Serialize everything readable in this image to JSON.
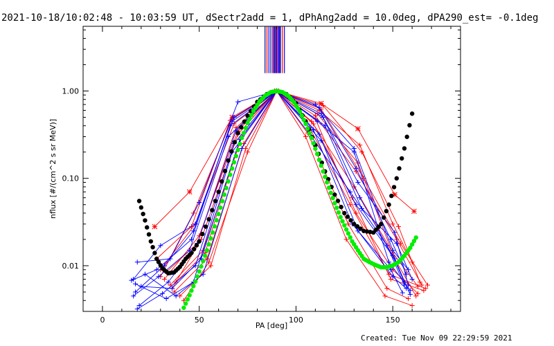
{
  "title": "2021-10-18/10:02:48 - 10:03:59 UT, dSectr2add = 1, dPhAng2add = 10.0deg, dPA290_est= -0.1deg",
  "footer": "Created: Tue Nov 09 22:29:59 2021",
  "colors": {
    "red": "#ff0000",
    "blue": "#0000ff",
    "green": "#00ee00",
    "black": "#000000",
    "vline": "#000088"
  },
  "chart_data": {
    "type": "line",
    "xlabel": "PA [deg]",
    "ylabel": "nflux [#/(cm^2 s sr MeV)]",
    "xlim": [
      -10,
      185
    ],
    "ylim": [
      0.003,
      5.5
    ],
    "yscale": "log",
    "xticks": [
      0,
      50,
      100,
      150
    ],
    "xticklabels": [
      "0",
      "50",
      "100",
      "150"
    ],
    "yticks": [
      0.01,
      0.1,
      1.0
    ],
    "yticklabels": [
      "0.01",
      "0.10",
      "1.00"
    ],
    "vertical_lines": [
      84,
      85,
      86,
      87,
      88,
      88.5,
      89,
      89.5,
      90,
      90.5,
      91,
      91.5,
      92,
      93,
      94
    ],
    "fit_black": {
      "name": "",
      "x": [
        19,
        22,
        25,
        28,
        31,
        34,
        37,
        40,
        43,
        46,
        50,
        55,
        60,
        65,
        70,
        75,
        80,
        85,
        90,
        95,
        100,
        105,
        110,
        115,
        120,
        125,
        130,
        135,
        140,
        144,
        148,
        152,
        156,
        160
      ],
      "y": [
        0.055,
        0.033,
        0.019,
        0.012,
        0.0093,
        0.0082,
        0.0084,
        0.0097,
        0.012,
        0.014,
        0.019,
        0.034,
        0.07,
        0.16,
        0.33,
        0.52,
        0.75,
        0.92,
        1.0,
        0.92,
        0.72,
        0.45,
        0.24,
        0.12,
        0.065,
        0.04,
        0.03,
        0.025,
        0.024,
        0.03,
        0.05,
        0.1,
        0.22,
        0.55
      ]
    },
    "fit_green": {
      "name": "",
      "x": [
        42,
        45,
        48,
        51,
        54,
        57,
        60,
        63,
        66,
        69,
        72,
        75,
        78,
        81,
        84,
        87,
        90,
        93,
        96,
        99,
        102,
        105,
        108,
        111,
        114,
        117,
        120,
        123,
        126,
        129,
        132,
        135,
        138,
        141,
        144,
        147,
        150,
        153,
        156,
        159,
        162
      ],
      "y": [
        0.0033,
        0.0046,
        0.0066,
        0.0098,
        0.015,
        0.024,
        0.039,
        0.065,
        0.11,
        0.18,
        0.29,
        0.43,
        0.59,
        0.75,
        0.88,
        0.97,
        1.0,
        0.97,
        0.88,
        0.74,
        0.58,
        0.42,
        0.29,
        0.19,
        0.12,
        0.078,
        0.052,
        0.036,
        0.026,
        0.019,
        0.015,
        0.012,
        0.011,
        0.0102,
        0.0096,
        0.0096,
        0.0101,
        0.011,
        0.013,
        0.016,
        0.021
      ]
    },
    "series": [
      {
        "color": "red",
        "marker": "star",
        "x": [
          27,
          45,
          67,
          90,
          113,
          132,
          151,
          161
        ],
        "y": [
          0.028,
          0.07,
          0.5,
          1.0,
          0.72,
          0.37,
          0.065,
          0.042
        ]
      },
      {
        "color": "red",
        "marker": "plus",
        "x": [
          30,
          48,
          68,
          90,
          112,
          133,
          150,
          160
        ],
        "y": [
          0.009,
          0.03,
          0.42,
          1.0,
          0.6,
          0.24,
          0.03,
          0.011
        ]
      },
      {
        "color": "red",
        "marker": "plus",
        "x": [
          32,
          50,
          70,
          90,
          110,
          131,
          152,
          165
        ],
        "y": [
          0.007,
          0.022,
          0.35,
          1.0,
          0.52,
          0.12,
          0.02,
          0.006
        ]
      },
      {
        "color": "red",
        "marker": "plus",
        "x": [
          35,
          52,
          72,
          90,
          108,
          130,
          150,
          163
        ],
        "y": [
          0.006,
          0.015,
          0.3,
          1.0,
          0.45,
          0.08,
          0.014,
          0.0058
        ]
      },
      {
        "color": "red",
        "marker": "plus",
        "x": [
          37,
          54,
          73,
          90,
          107,
          128,
          148,
          167
        ],
        "y": [
          0.005,
          0.012,
          0.25,
          1.0,
          0.38,
          0.05,
          0.008,
          0.0055
        ]
      },
      {
        "color": "red",
        "marker": "plus",
        "x": [
          40,
          56,
          74,
          90,
          106,
          127,
          147,
          158
        ],
        "y": [
          0.0045,
          0.01,
          0.22,
          1.0,
          0.33,
          0.03,
          0.0055,
          0.0042
        ]
      },
      {
        "color": "red",
        "marker": "plus",
        "x": [
          28,
          46,
          66,
          90,
          114,
          134,
          153,
          164
        ],
        "y": [
          0.012,
          0.028,
          0.46,
          1.0,
          0.68,
          0.2,
          0.028,
          0.0065
        ]
      },
      {
        "color": "red",
        "marker": "plus",
        "x": [
          33,
          49,
          69,
          90,
          111,
          132,
          151,
          162
        ],
        "y": [
          0.0085,
          0.018,
          0.38,
          1.0,
          0.55,
          0.15,
          0.012,
          0.0045
        ]
      },
      {
        "color": "red",
        "marker": "plus",
        "x": [
          38,
          53,
          71,
          90,
          109,
          129,
          149,
          166
        ],
        "y": [
          0.0065,
          0.014,
          0.28,
          1.0,
          0.42,
          0.06,
          0.007,
          0.0052
        ]
      },
      {
        "color": "red",
        "marker": "plus",
        "x": [
          42,
          55,
          75,
          90,
          105,
          126,
          146,
          160
        ],
        "y": [
          0.004,
          0.011,
          0.2,
          1.0,
          0.3,
          0.02,
          0.0045,
          0.0035
        ]
      },
      {
        "color": "red",
        "marker": "plus",
        "x": [
          30,
          47,
          67,
          90,
          113,
          135,
          154,
          168
        ],
        "y": [
          0.0075,
          0.04,
          0.48,
          1.0,
          0.62,
          0.1,
          0.018,
          0.006
        ]
      },
      {
        "color": "red",
        "marker": "plus",
        "x": [
          36,
          51,
          70,
          90,
          110,
          131,
          150,
          163
        ],
        "y": [
          0.0055,
          0.02,
          0.32,
          1.0,
          0.48,
          0.04,
          0.009,
          0.0048
        ]
      },
      {
        "color": "blue",
        "marker": "plus",
        "x": [
          18,
          35,
          50,
          70,
          90,
          110,
          130,
          150,
          158
        ],
        "y": [
          0.011,
          0.012,
          0.053,
          0.75,
          1.0,
          0.7,
          0.22,
          0.015,
          0.009
        ]
      },
      {
        "color": "blue",
        "marker": "plus",
        "x": [
          16,
          30,
          48,
          68,
          90,
          112,
          131,
          149,
          157
        ],
        "y": [
          0.007,
          0.017,
          0.03,
          0.5,
          1.0,
          0.65,
          0.13,
          0.02,
          0.008
        ]
      },
      {
        "color": "blue",
        "marker": "plus",
        "x": [
          17,
          32,
          47,
          67,
          90,
          113,
          132,
          151,
          158
        ],
        "y": [
          0.005,
          0.01,
          0.025,
          0.45,
          1.0,
          0.55,
          0.09,
          0.024,
          0.006
        ]
      },
      {
        "color": "blue",
        "marker": "plus",
        "x": [
          15,
          28,
          46,
          66,
          90,
          114,
          133,
          150,
          156
        ],
        "y": [
          0.0068,
          0.009,
          0.02,
          0.4,
          1.0,
          0.5,
          0.06,
          0.013,
          0.0065
        ]
      },
      {
        "color": "blue",
        "marker": "plus",
        "x": [
          19,
          34,
          49,
          69,
          90,
          111,
          130,
          148,
          159
        ],
        "y": [
          0.0035,
          0.0065,
          0.018,
          0.35,
          1.0,
          0.45,
          0.2,
          0.011,
          0.0052
        ]
      },
      {
        "color": "blue",
        "marker": "plus",
        "x": [
          16,
          29,
          45,
          65,
          90,
          115,
          134,
          152,
          160
        ],
        "y": [
          0.0045,
          0.0075,
          0.015,
          0.3,
          1.0,
          0.4,
          0.045,
          0.018,
          0.007
        ]
      },
      {
        "color": "blue",
        "marker": "plus",
        "x": [
          20,
          36,
          51,
          71,
          90,
          109,
          129,
          149,
          155
        ],
        "y": [
          0.0058,
          0.0055,
          0.012,
          0.28,
          1.0,
          0.36,
          0.03,
          0.009,
          0.0049
        ]
      },
      {
        "color": "blue",
        "marker": "plus",
        "x": [
          18,
          31,
          48,
          68,
          90,
          112,
          132,
          150,
          157
        ],
        "y": [
          0.0032,
          0.0048,
          0.01,
          0.25,
          1.0,
          0.32,
          0.025,
          0.0075,
          0.0055
        ]
      },
      {
        "color": "blue",
        "marker": "plus",
        "x": [
          22,
          38,
          52,
          72,
          90,
          108,
          128,
          147,
          156
        ],
        "y": [
          0.008,
          0.0045,
          0.008,
          0.22,
          1.0,
          0.3,
          0.07,
          0.017,
          0.006
        ]
      },
      {
        "color": "blue",
        "marker": "plus",
        "x": [
          17,
          33,
          47,
          67,
          90,
          113,
          131,
          151,
          159
        ],
        "y": [
          0.0062,
          0.0042,
          0.0065,
          0.2,
          1.0,
          0.27,
          0.05,
          0.012,
          0.0047
        ]
      }
    ]
  }
}
